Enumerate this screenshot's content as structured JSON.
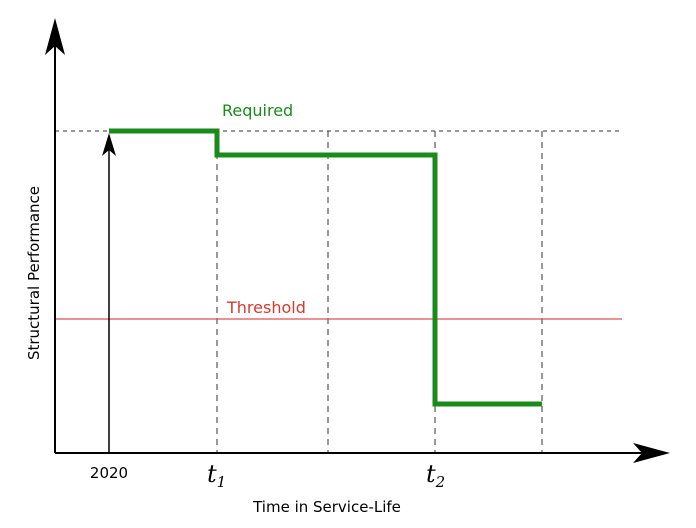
{
  "labels": {
    "required": "Required",
    "threshold": "Threshold",
    "y_axis": "Structural Performance",
    "x_axis": "Time in Service-Life",
    "tick_start": "2020",
    "tick_t1_base": "t",
    "tick_t1_sub": "1",
    "tick_t2_base": "t",
    "tick_t2_sub": "2"
  },
  "colors": {
    "performance_line": "#1a8a1a",
    "required_label": "#1a8a1a",
    "threshold_line": "#e05050",
    "threshold_label": "#d63a2e",
    "axes": "#000000",
    "guides": "#333333"
  }
}
